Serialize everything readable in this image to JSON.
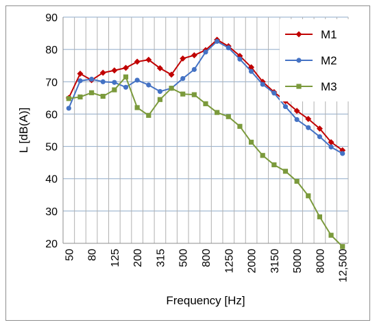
{
  "chart_data": {
    "type": "line",
    "title": "",
    "xlabel": "Frequency [Hz]",
    "ylabel": "L  [dB(A)]",
    "ylim": [
      20,
      90
    ],
    "yticks": [
      20,
      30,
      40,
      50,
      60,
      70,
      80,
      90
    ],
    "categories": [
      "50",
      "63",
      "80",
      "100",
      "125",
      "160",
      "200",
      "250",
      "315",
      "400",
      "500",
      "630",
      "800",
      "1000",
      "1250",
      "1600",
      "2000",
      "2500",
      "3150",
      "4000",
      "5000",
      "6300",
      "8000",
      "10000",
      "12,500"
    ],
    "xtick_labels": [
      "50",
      "",
      "80",
      "",
      "125",
      "",
      "200",
      "",
      "315",
      "",
      "500",
      "",
      "800",
      "",
      "1250",
      "",
      "2000",
      "",
      "3150",
      "",
      "5000",
      "",
      "8000",
      "",
      "12,500"
    ],
    "grid": "both",
    "legend_position": "top-right",
    "series": [
      {
        "name": "M1",
        "color": "#c00000",
        "marker": "diamond",
        "values": [
          65,
          72.5,
          70.5,
          72.8,
          73.5,
          74.3,
          76.2,
          76.8,
          74.2,
          72.2,
          77.2,
          78.2,
          79.8,
          83,
          81,
          78,
          74.5,
          70,
          66.8,
          64,
          61,
          58.5,
          55.5,
          51.3,
          48.8
        ]
      },
      {
        "name": "M2",
        "color": "#4472c4",
        "marker": "circle",
        "values": [
          61.8,
          70.3,
          70.8,
          70,
          69.8,
          68.3,
          70.5,
          69,
          67,
          68,
          71,
          73.8,
          79.2,
          82.5,
          80.5,
          77,
          73.2,
          69.2,
          66.5,
          62.3,
          58.3,
          55.8,
          53,
          49.8,
          47.8
        ]
      },
      {
        "name": "M3",
        "color": "#7b9a3c",
        "marker": "square",
        "values": [
          64.8,
          65.3,
          66.6,
          65.5,
          67.5,
          71.5,
          62,
          59.6,
          64.5,
          68,
          66.2,
          66,
          63.2,
          60.5,
          59.2,
          56.2,
          51.3,
          47.2,
          44.3,
          42.3,
          39.2,
          34.7,
          28.2,
          22.5,
          19
        ]
      }
    ]
  }
}
